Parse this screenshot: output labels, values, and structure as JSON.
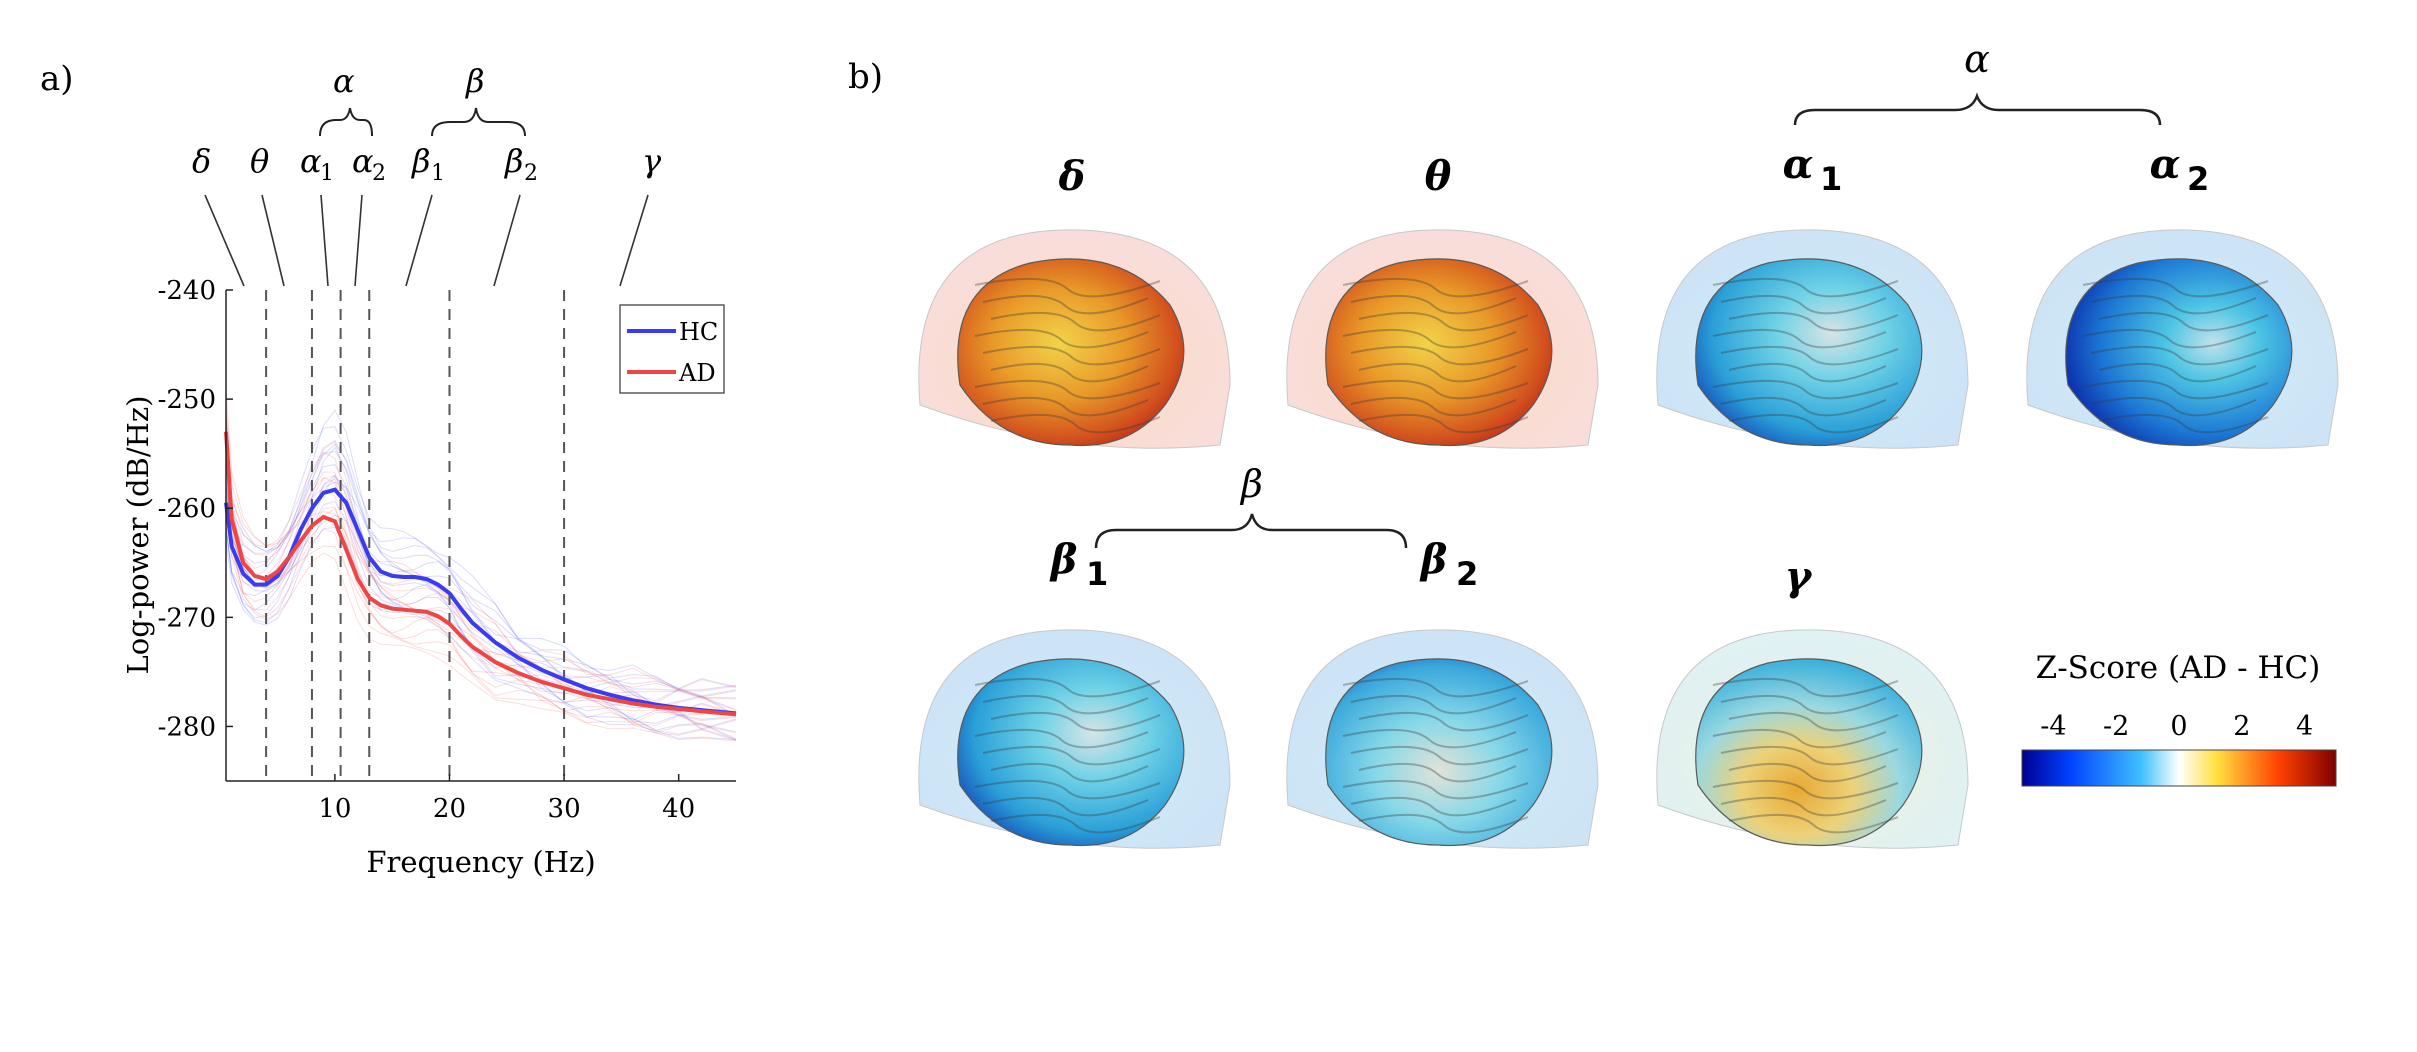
{
  "panel_a": {
    "label": "a)",
    "band_labels": {
      "delta": "δ",
      "theta": "θ",
      "alpha1": "α",
      "alpha1_sub": "1",
      "alpha2": "α",
      "alpha2_sub": "2",
      "beta1": "β",
      "beta1_sub": "1",
      "beta2": "β",
      "beta2_sub": "2",
      "gamma": "γ",
      "alpha_group": "α",
      "beta_group": "β"
    }
  },
  "chart_data": {
    "type": "line",
    "xlabel": "Frequency (Hz)",
    "ylabel": "Log-power (dB/Hz)",
    "xlim": [
      0.5,
      45
    ],
    "ylim": [
      -285,
      -240
    ],
    "xticks": [
      10,
      20,
      30,
      40
    ],
    "yticks": [
      -240,
      -250,
      -260,
      -270,
      -280
    ],
    "band_boundaries_hz": [
      4,
      8,
      10.5,
      13,
      20,
      30
    ],
    "legend": {
      "placement": "top-right",
      "entries": [
        "HC",
        "AD"
      ]
    },
    "colors": {
      "HC": "#3b3bf0",
      "AD": "#f04545"
    },
    "x": [
      0.5,
      1,
      2,
      3,
      4,
      5,
      6,
      7,
      8,
      9,
      10,
      11,
      12,
      13,
      14,
      15,
      16,
      17,
      18,
      19,
      20,
      21,
      22,
      24,
      26,
      28,
      30,
      32,
      34,
      36,
      38,
      40,
      42,
      45
    ],
    "series": [
      {
        "name": "HC",
        "values": [
          -259.5,
          -263.5,
          -266,
          -267,
          -267,
          -266.2,
          -264.5,
          -262,
          -260,
          -258.6,
          -258.3,
          -259.5,
          -262,
          -264.5,
          -265.8,
          -266.2,
          -266.3,
          -266.3,
          -266.5,
          -267,
          -267.8,
          -269.2,
          -270.5,
          -272.3,
          -273.7,
          -274.8,
          -275.7,
          -276.5,
          -277.1,
          -277.6,
          -278.0,
          -278.3,
          -278.5,
          -278.8
        ]
      },
      {
        "name": "AD",
        "values": [
          -253,
          -261,
          -265,
          -266.2,
          -266.5,
          -265.8,
          -264.5,
          -263,
          -261.6,
          -260.8,
          -261.2,
          -263.8,
          -266.5,
          -268.2,
          -268.9,
          -269.2,
          -269.3,
          -269.4,
          -269.5,
          -269.9,
          -270.6,
          -271.7,
          -272.7,
          -274.1,
          -275.1,
          -275.9,
          -276.5,
          -277.1,
          -277.5,
          -277.9,
          -278.2,
          -278.4,
          -278.6,
          -278.9
        ]
      }
    ]
  },
  "panel_b": {
    "label": "b)",
    "brains": [
      {
        "band": "δ",
        "sub": "",
        "pattern": "warm"
      },
      {
        "band": "θ",
        "sub": "",
        "pattern": "warm"
      },
      {
        "band": "α",
        "sub": "1",
        "pattern": "cool"
      },
      {
        "band": "α",
        "sub": "2",
        "pattern": "cool-strong"
      },
      {
        "band": "β",
        "sub": "1",
        "pattern": "cool"
      },
      {
        "band": "β",
        "sub": "2",
        "pattern": "cool-light"
      },
      {
        "band": "γ",
        "sub": "",
        "pattern": "mixed"
      }
    ],
    "group_alpha": "α",
    "group_beta": "β",
    "colorbar": {
      "title": "Z-Score (AD - HC)",
      "ticks": [
        "-4",
        "-2",
        "0",
        "2",
        "4"
      ],
      "tick_values": [
        -4,
        -2,
        0,
        2,
        4
      ],
      "range": [
        -5,
        5
      ],
      "colors": [
        "#00008f",
        "#0040ff",
        "#40c0ff",
        "#ffffff",
        "#ffe040",
        "#ff4000",
        "#7f0000"
      ]
    }
  }
}
